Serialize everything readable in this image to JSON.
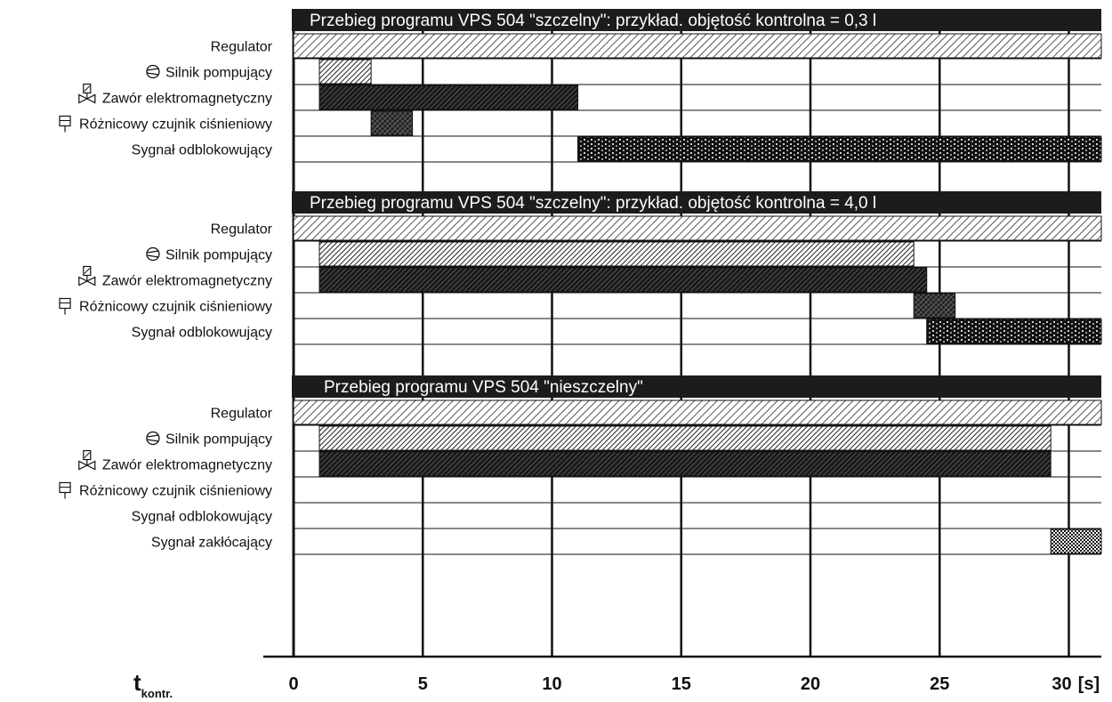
{
  "axis": {
    "symbol": "t",
    "subscript": "kontr.",
    "unit": "[s]",
    "ticks": [
      0,
      5,
      10,
      15,
      20,
      25,
      30
    ],
    "xlim": [
      0,
      31.5
    ]
  },
  "legend_icons": {
    "pump": "pump-circle-icon",
    "valve": "solenoid-valve-icon",
    "sensor": "pressure-sensor-icon"
  },
  "fill_patterns": {
    "Regulator": "light-diagonal-hatch",
    "Silnik pompujący": "fine-diagonal-hatch",
    "Zawór elektromagnetyczny": "dark-diagonal-hatch",
    "Różnicowy czujnik ciśnieniowy": "dark-cross-hatch",
    "Sygnał odblokowujący": "black-dotted-grid",
    "Sygnał zakłócający": "checkerboard"
  },
  "panels": [
    {
      "title": "Przebieg programu VPS 504 \"szczelny\": przykład. objętość kontrolna = 0,3 l",
      "rows": [
        {
          "label": "Regulator",
          "icon": "",
          "bars": [
            [
              0,
              31.5
            ]
          ]
        },
        {
          "label": "Silnik pompujący",
          "icon": "pump",
          "bars": [
            [
              1,
              3
            ]
          ]
        },
        {
          "label": "Zawór elektromagnetyczny",
          "icon": "valve",
          "bars": [
            [
              1,
              11
            ]
          ]
        },
        {
          "label": "Różnicowy czujnik ciśnieniowy",
          "icon": "sensor",
          "bars": [
            [
              3,
              4.6
            ]
          ]
        },
        {
          "label": "Sygnał odblokowujący",
          "icon": "",
          "bars": [
            [
              11,
              31.5
            ]
          ]
        }
      ]
    },
    {
      "title": "Przebieg programu VPS 504 \"szczelny\": przykład. objętość kontrolna = 4,0 l",
      "rows": [
        {
          "label": "Regulator",
          "icon": "",
          "bars": [
            [
              0,
              31.5
            ]
          ]
        },
        {
          "label": "Silnik pompujący",
          "icon": "pump",
          "bars": [
            [
              1,
              24
            ]
          ]
        },
        {
          "label": "Zawór elektromagnetyczny",
          "icon": "valve",
          "bars": [
            [
              1,
              24.5
            ]
          ]
        },
        {
          "label": "Różnicowy czujnik ciśnieniowy",
          "icon": "sensor",
          "bars": [
            [
              24,
              25.6
            ]
          ]
        },
        {
          "label": "Sygnał odblokowujący",
          "icon": "",
          "bars": [
            [
              24.5,
              31.5
            ]
          ]
        }
      ]
    },
    {
      "title": "Przebieg programu VPS 504 \"nieszczelny\"",
      "rows": [
        {
          "label": "Regulator",
          "icon": "",
          "bars": [
            [
              0,
              31.5
            ]
          ]
        },
        {
          "label": "Silnik pompujący",
          "icon": "pump",
          "bars": [
            [
              1,
              29.3
            ]
          ]
        },
        {
          "label": "Zawór elektromagnetyczny",
          "icon": "valve",
          "bars": [
            [
              1,
              29.3
            ]
          ]
        },
        {
          "label": "Różnicowy czujnik ciśnieniowy",
          "icon": "sensor",
          "bars": []
        },
        {
          "label": "Sygnał odblokowujący",
          "icon": "",
          "bars": []
        },
        {
          "label": "Sygnał zakłócający",
          "icon": "",
          "bars": [
            [
              29.3,
              31.5
            ]
          ]
        }
      ]
    }
  ]
}
